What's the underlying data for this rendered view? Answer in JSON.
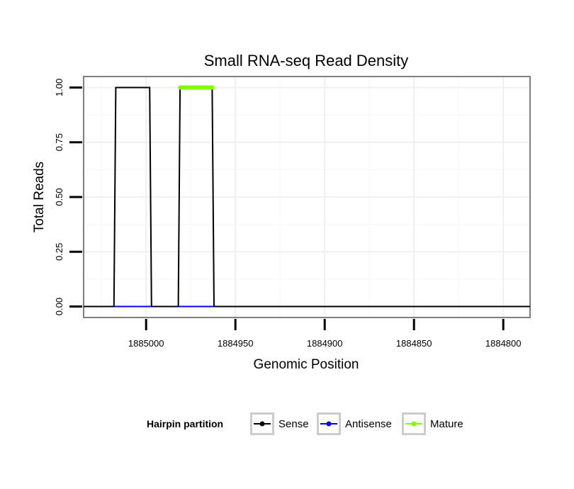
{
  "chart_data": {
    "type": "line",
    "title": "Small RNA-seq Read Density",
    "xlabel": "Genomic Position",
    "ylabel": "Total Reads",
    "xlim": [
      1885035,
      1884785
    ],
    "x_reversed": true,
    "ylim": [
      -0.05,
      1.05
    ],
    "x_ticks": [
      1885000,
      1884950,
      1884900,
      1884850,
      1884800
    ],
    "x_tick_labels": [
      "1885000",
      "1884950",
      "1884900",
      "1884850",
      "1884800"
    ],
    "y_ticks": [
      0,
      0.25,
      0.5,
      0.75,
      1
    ],
    "y_tick_labels": [
      "0.00",
      "0.25",
      "0.50",
      "0.75",
      "1.00"
    ],
    "grid": true,
    "series": [
      {
        "name": "Sense",
        "color": "#000000",
        "x": [
          1885035,
          1885018,
          1885017,
          1884998,
          1884997,
          1884982,
          1884981,
          1884963,
          1884962,
          1884785
        ],
        "y": [
          0,
          0,
          1,
          1,
          0,
          0,
          1,
          1,
          0,
          0
        ]
      },
      {
        "name": "Antisense",
        "color": "#0000ff",
        "x": [
          1885018,
          1884997,
          1884982,
          1884962
        ],
        "y": [
          0,
          0,
          0,
          0
        ]
      },
      {
        "name": "Mature",
        "color": "#7fff00",
        "x": [
          1884981,
          1884963
        ],
        "y": [
          1,
          1
        ]
      }
    ],
    "legend": {
      "title": "Hairpin partition",
      "placement": "bottom",
      "entries": [
        "Sense",
        "Antisense",
        "Mature"
      ]
    }
  }
}
